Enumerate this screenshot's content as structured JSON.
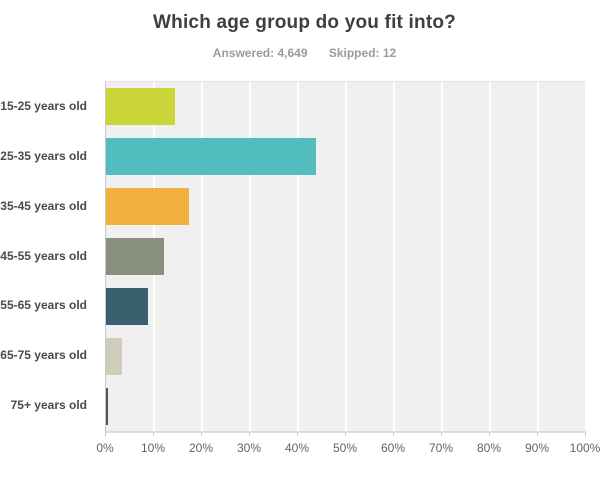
{
  "header": {
    "title": "Which age group do you fit into?",
    "answered_label": "Answered: 4,649",
    "skipped_label": "Skipped: 12"
  },
  "chart_data": {
    "type": "bar",
    "orientation": "horizontal",
    "title": "Which age group do you fit into?",
    "subtitle": "Answered: 4,649  Skipped: 12",
    "categories": [
      "15-25 years old",
      "25-35 years old",
      "35-45 years old",
      "45-55 years old",
      "55-65 years old",
      "65-75 years old",
      "75+ years old"
    ],
    "values": [
      14.4,
      43.7,
      17.3,
      12.0,
      8.8,
      3.3,
      0.4
    ],
    "unit": "%",
    "bar_colors": [
      "#cbd53a",
      "#52bdbe",
      "#f1b13e",
      "#8a9080",
      "#3a5f6f",
      "#cfcdba",
      "#54544a"
    ],
    "xlabel": "",
    "ylabel": "",
    "x_axis": {
      "min": 0,
      "max": 100,
      "tick_interval": 10,
      "tick_labels": [
        "0%",
        "10%",
        "20%",
        "30%",
        "40%",
        "50%",
        "60%",
        "70%",
        "80%",
        "90%",
        "100%"
      ]
    },
    "grid": true,
    "legend": false,
    "plot_bg": "#f0f0f0",
    "gridline_color": "#ffffff"
  }
}
